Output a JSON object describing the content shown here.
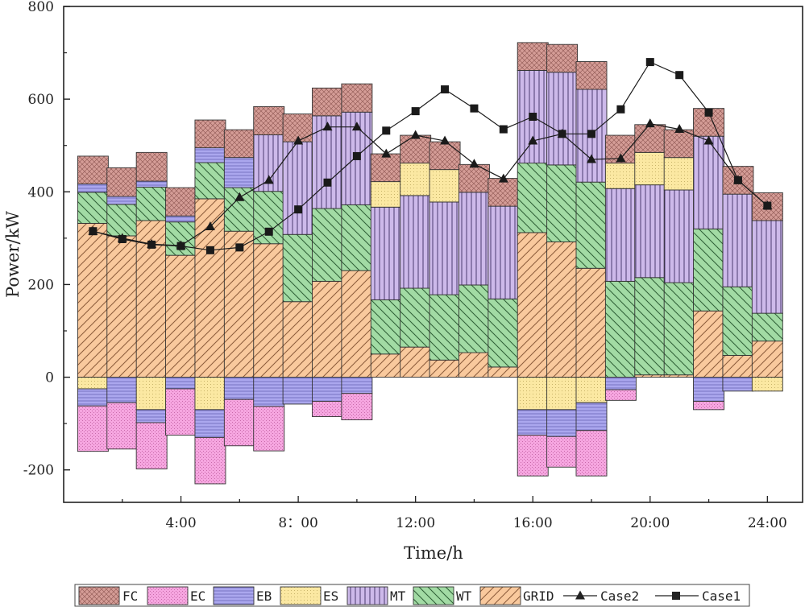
{
  "chart_data": {
    "type": "bar",
    "subtype": "stacked-bar-with-lines",
    "title": "",
    "xlabel": "Time/h",
    "ylabel": "Power/kW",
    "ylim": [
      -270,
      800
    ],
    "xlim": [
      0,
      25.2
    ],
    "yticks": [
      -200,
      0,
      200,
      400,
      600,
      800
    ],
    "ytick_labels": [
      "-200",
      "0",
      "200",
      "400",
      "600",
      "800"
    ],
    "xticks": [
      4,
      8,
      12,
      16,
      20,
      24
    ],
    "xtick_labels": [
      "4:00",
      "8：00",
      "12:00",
      "16:00",
      "20:00",
      "24:00"
    ],
    "grid": false,
    "legend_position": "bottom",
    "hours": [
      1,
      2,
      3,
      4,
      5,
      6,
      7,
      8,
      9,
      10,
      11,
      12,
      13,
      14,
      15,
      16,
      17,
      18,
      19,
      20,
      21,
      22,
      23,
      24
    ],
    "positive_series": [
      {
        "name": "GRID",
        "key": "grid",
        "values": [
          332,
          305,
          338,
          263,
          385,
          315,
          288,
          163,
          207,
          230,
          50,
          65,
          37,
          53,
          22,
          312,
          292,
          235,
          0,
          5,
          5,
          143,
          47,
          78
        ]
      },
      {
        "name": "WT",
        "key": "wt",
        "values": [
          67,
          68,
          72,
          72,
          78,
          94,
          113,
          145,
          157,
          142,
          117,
          127,
          141,
          146,
          147,
          150,
          166,
          186,
          207,
          210,
          199,
          177,
          148,
          60
        ]
      },
      {
        "name": "MT",
        "key": "mt",
        "values": [
          0,
          0,
          0,
          0,
          0,
          0,
          122,
          200,
          200,
          200,
          200,
          200,
          200,
          200,
          200,
          200,
          200,
          200,
          200,
          200,
          200,
          200,
          200,
          200
        ]
      },
      {
        "name": "ES",
        "key": "es",
        "values": [
          0,
          0,
          0,
          0,
          0,
          0,
          0,
          0,
          0,
          0,
          55,
          70,
          70,
          0,
          0,
          0,
          0,
          0,
          55,
          70,
          70,
          0,
          0,
          0
        ]
      },
      {
        "name": "EB",
        "key": "eb",
        "values": [
          18,
          17,
          13,
          13,
          32,
          65,
          0,
          0,
          0,
          0,
          0,
          0,
          0,
          0,
          0,
          0,
          0,
          0,
          0,
          0,
          0,
          0,
          0,
          0
        ]
      },
      {
        "name": "FC",
        "key": "fc",
        "values": [
          60,
          62,
          62,
          61,
          60,
          60,
          61,
          60,
          60,
          61,
          60,
          60,
          60,
          60,
          60,
          60,
          60,
          60,
          60,
          60,
          60,
          60,
          60,
          60
        ]
      }
    ],
    "negative_series": [
      {
        "name": "ES",
        "key": "es",
        "values": [
          -25,
          0,
          -70,
          0,
          -70,
          0,
          0,
          0,
          0,
          0,
          0,
          0,
          0,
          0,
          0,
          -70,
          -70,
          -55,
          0,
          0,
          0,
          0,
          0,
          -30
        ]
      },
      {
        "name": "EB",
        "key": "eb",
        "values": [
          -37,
          -55,
          -28,
          -25,
          -60,
          -48,
          -63,
          -58,
          -52,
          -35,
          0,
          0,
          0,
          0,
          0,
          -55,
          -58,
          -60,
          -27,
          0,
          0,
          -52,
          -30,
          0
        ]
      },
      {
        "name": "EC",
        "key": "ec",
        "values": [
          -98,
          -100,
          -100,
          -100,
          -100,
          -100,
          -96,
          0,
          -33,
          -57,
          0,
          0,
          0,
          0,
          0,
          -88,
          -66,
          -98,
          -23,
          0,
          0,
          -18,
          0,
          0
        ]
      }
    ],
    "lines": [
      {
        "name": "Case2",
        "marker": "triangle",
        "values": [
          315,
          300,
          287,
          284,
          325,
          388,
          425,
          510,
          540,
          540,
          482,
          522,
          510,
          460,
          428,
          510,
          525,
          470,
          472,
          547,
          535,
          510,
          425,
          370
        ]
      },
      {
        "name": "Case1",
        "marker": "square",
        "values": [
          315,
          298,
          286,
          283,
          274,
          280,
          314,
          362,
          420,
          477,
          532,
          574,
          621,
          580,
          535,
          562,
          525,
          525,
          578,
          680,
          652,
          571,
          425,
          370
        ]
      }
    ]
  },
  "legend": [
    {
      "label": "FC",
      "key": "fc",
      "kind": "box"
    },
    {
      "label": "EC",
      "key": "ec",
      "kind": "box"
    },
    {
      "label": "EB",
      "key": "eb",
      "kind": "box"
    },
    {
      "label": "ES",
      "key": "es",
      "kind": "box"
    },
    {
      "label": "MT",
      "key": "mt",
      "kind": "box"
    },
    {
      "label": "WT",
      "key": "wt",
      "kind": "box"
    },
    {
      "label": "GRID",
      "key": "grid",
      "kind": "box"
    },
    {
      "label": "Case2",
      "key": "case2",
      "kind": "line-triangle"
    },
    {
      "label": "Case1",
      "key": "case1",
      "kind": "line-square"
    }
  ],
  "colors": {
    "grid": "#f9c99d",
    "wt": "#a2dba4",
    "mt": "#cdb9ea",
    "es": "#fbe8a2",
    "eb": "#aba7ee",
    "fc": "#d49c96",
    "ec": "#f6a6e0",
    "line": "#1a1a1a"
  }
}
